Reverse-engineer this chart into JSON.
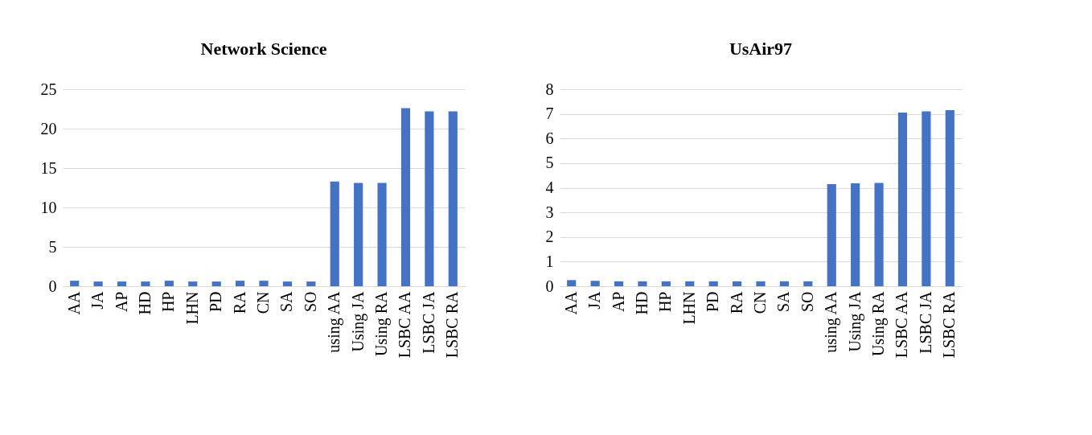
{
  "chart_data": [
    {
      "type": "bar",
      "title": "Network Science",
      "categories": [
        "AA",
        "JA",
        "AP",
        "HD",
        "HP",
        "LHN",
        "PD",
        "RA",
        "CN",
        "SA",
        "SO",
        "using AA",
        "Using JA",
        "Using RA",
        "LSBC AA",
        "LSBC JA",
        "LSBC RA"
      ],
      "values": [
        0.7,
        0.6,
        0.6,
        0.6,
        0.7,
        0.6,
        0.6,
        0.7,
        0.7,
        0.6,
        0.6,
        13.3,
        13.1,
        13.1,
        22.6,
        22.2,
        22.2
      ],
      "color": "#4472c4",
      "ylim": [
        0,
        25
      ],
      "yticks": [
        0,
        5,
        10,
        15,
        20,
        25
      ],
      "grid": "y"
    },
    {
      "type": "bar",
      "title": "UsAir97",
      "categories": [
        "AA",
        "JA",
        "AP",
        "HD",
        "HP",
        "LHN",
        "PD",
        "RA",
        "CN",
        "SA",
        "SO",
        "using AA",
        "Using JA",
        "Using RA",
        "LSBC AA",
        "LSBC JA",
        "LSBC RA"
      ],
      "values": [
        0.25,
        0.22,
        0.2,
        0.2,
        0.2,
        0.2,
        0.2,
        0.2,
        0.2,
        0.2,
        0.2,
        4.15,
        4.18,
        4.2,
        7.05,
        7.1,
        7.15
      ],
      "color": "#4472c4",
      "ylim": [
        0,
        8
      ],
      "yticks": [
        0,
        1,
        2,
        3,
        4,
        5,
        6,
        7,
        8
      ],
      "grid": "y"
    }
  ]
}
